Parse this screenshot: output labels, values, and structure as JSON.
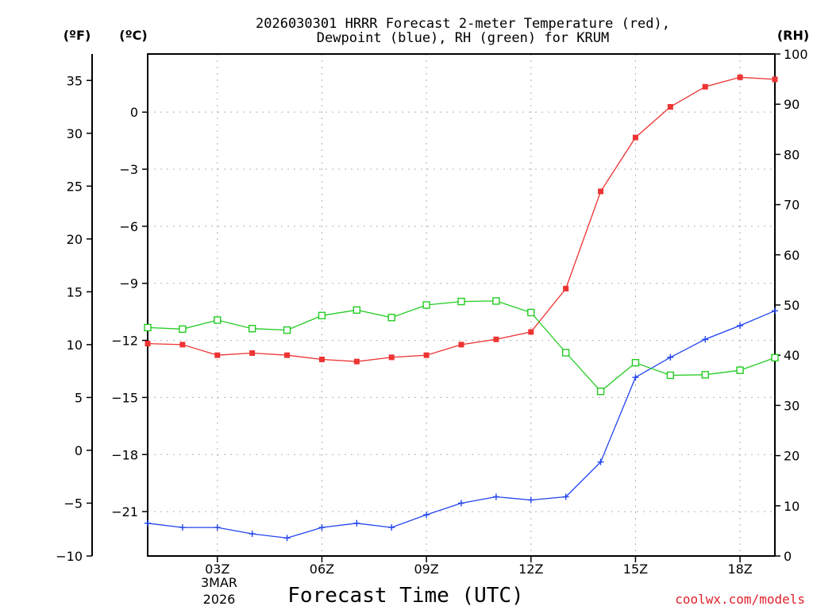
{
  "chart_data": {
    "type": "line",
    "title": "2026030301 HRRR Forecast 2-meter Temperature (red),",
    "subtitle": "Dewpoint (blue), RH (green) for KRUM",
    "xlabel": "Forecast Time (UTC)",
    "date_line_1": "3MAR",
    "date_line_2": "2026",
    "credit": "coolwx.com/models",
    "units": {
      "fahrenheit": "(ºF)",
      "celsius": "(ºC)",
      "rh": "(RH)"
    },
    "x": [
      1,
      2,
      3,
      4,
      5,
      6,
      7,
      8,
      9,
      10,
      11,
      12,
      13,
      14,
      15,
      16,
      17,
      18,
      19
    ],
    "xlim": [
      1,
      19
    ],
    "x_ticks": [
      {
        "x": 3,
        "label": "03Z"
      },
      {
        "x": 6,
        "label": "06Z"
      },
      {
        "x": 9,
        "label": "09Z"
      },
      {
        "x": 12,
        "label": "12Z"
      },
      {
        "x": 15,
        "label": "15Z"
      },
      {
        "x": 18,
        "label": "18Z"
      }
    ],
    "y_left_f": {
      "range": [
        -10,
        37.5
      ],
      "ticks": [
        -10,
        -5,
        0,
        5,
        10,
        15,
        20,
        25,
        30,
        35
      ],
      "tick_labels": [
        "−10",
        "−5",
        "0",
        "5",
        "10",
        "15",
        "20",
        "25",
        "30",
        "35"
      ]
    },
    "y_left_c": {
      "ticks": [
        0,
        -3,
        -6,
        -9,
        -12,
        -15,
        -18,
        -21
      ],
      "tick_labels": [
        "0",
        "−3",
        "−6",
        "−9",
        "−12",
        "−15",
        "−18",
        "−21"
      ]
    },
    "y_right_rh": {
      "range": [
        0,
        100
      ],
      "ticks": [
        0,
        10,
        20,
        30,
        40,
        50,
        60,
        70,
        80,
        90,
        100
      ],
      "tick_labels": [
        "0",
        "10",
        "20",
        "30",
        "40",
        "50",
        "60",
        "70",
        "80",
        "90",
        "100"
      ]
    },
    "series": [
      {
        "name": "Temperature",
        "axis": "F",
        "color": "#ee3333",
        "marker": "filled-square",
        "values": [
          10.1,
          10.0,
          9.0,
          9.2,
          9.0,
          8.6,
          8.4,
          8.8,
          9.0,
          10.0,
          10.5,
          11.2,
          15.3,
          24.5,
          29.6,
          32.5,
          34.4,
          35.3,
          35.1
        ]
      },
      {
        "name": "Dewpoint",
        "axis": "F",
        "color": "#2244ee",
        "marker": "plus",
        "values": [
          -6.9,
          -7.3,
          -7.3,
          -7.9,
          -8.3,
          -7.3,
          -6.9,
          -7.3,
          -6.1,
          -5.0,
          -4.4,
          -4.7,
          -4.4,
          -1.1,
          6.9,
          8.8,
          10.5,
          11.8,
          13.2
        ]
      },
      {
        "name": "RH",
        "axis": "RH",
        "color": "#22cc22",
        "marker": "open-square",
        "values": [
          45.5,
          45.2,
          47.0,
          45.3,
          45.0,
          47.9,
          49.0,
          47.5,
          50.0,
          50.7,
          50.8,
          48.5,
          40.5,
          32.8,
          38.5,
          36.0,
          36.1,
          37.0,
          39.5
        ]
      }
    ]
  }
}
